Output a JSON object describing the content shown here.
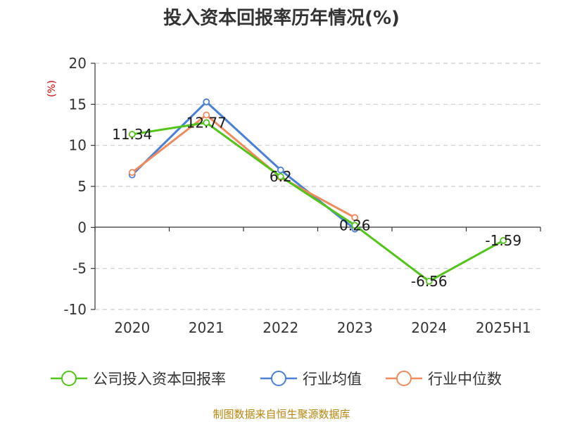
{
  "chart_data": {
    "type": "line",
    "title": "投入资本回报率历年情况(%)",
    "ylabel": "(%)",
    "categories": [
      "2020",
      "2021",
      "2022",
      "2023",
      "2024",
      "2025H1"
    ],
    "ylim": [
      -10,
      20
    ],
    "yticks": [
      20,
      15,
      10,
      5,
      0,
      -5,
      -10
    ],
    "grid": "horizontal-dashed",
    "legend_position": "bottom",
    "series": [
      {
        "name": "公司投入资本回报率",
        "color": "#52c41a",
        "values": [
          11.34,
          12.77,
          6.2,
          0.26,
          -6.56,
          -1.59
        ],
        "labels": [
          "11.34",
          "12.77",
          "6.2",
          "0.26",
          "-6.56",
          "-1.59"
        ]
      },
      {
        "name": "行业均值",
        "color": "#4a7fd6",
        "values": [
          6.4,
          15.3,
          7.0,
          -0.2,
          null,
          null
        ]
      },
      {
        "name": "行业中位数",
        "color": "#f08a5d",
        "values": [
          6.7,
          13.7,
          6.1,
          1.2,
          null,
          null
        ]
      }
    ],
    "source": "制图数据来自恒生聚源数据库"
  }
}
